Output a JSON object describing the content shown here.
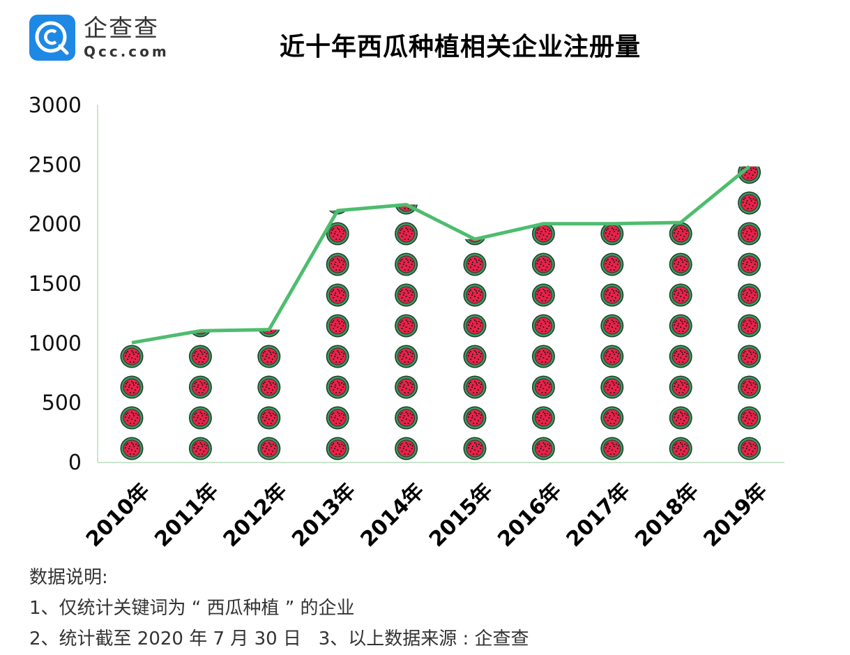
{
  "logo": {
    "name_cn": "企查查",
    "domain": "Qcc.com",
    "brand_color": "#1e88e5"
  },
  "title": "近十年西瓜种植相关企业注册量",
  "notes": {
    "heading": "数据说明:",
    "line1": "1、仅统计关键词为 “ 西瓜种植 ” 的企业",
    "line2": "2、统计截至 2020 年 7 月 30 日   3、以上数据来源 : 企查查"
  },
  "colors": {
    "line": "#4dbd6e",
    "axis": "#c9e6cc",
    "flesh": "#e8224a",
    "rind": "#3d9a5f",
    "outline": "#1f3a2a",
    "seed": "#1a1a1a"
  },
  "chart_data": {
    "type": "line",
    "subtype": "pictograph-column-with-line",
    "title": "近十年西瓜种植相关企业注册量",
    "xlabel": "",
    "ylabel": "",
    "categories": [
      "2010年",
      "2011年",
      "2012年",
      "2013年",
      "2014年",
      "2015年",
      "2016年",
      "2017年",
      "2018年",
      "2019年"
    ],
    "series": [
      {
        "name": "西瓜种植相关企业注册量",
        "values": [
          1000,
          1100,
          1110,
          2110,
          2160,
          1870,
          2000,
          2000,
          2010,
          2480
        ]
      }
    ],
    "yticks": [
      0,
      500,
      1000,
      1500,
      2000,
      2500,
      3000
    ],
    "ylim": [
      0,
      3000
    ],
    "grid": false,
    "legend": "none",
    "icon": "watermelon-slice",
    "icon_unit": 250,
    "x_tick_rotation": -45
  }
}
